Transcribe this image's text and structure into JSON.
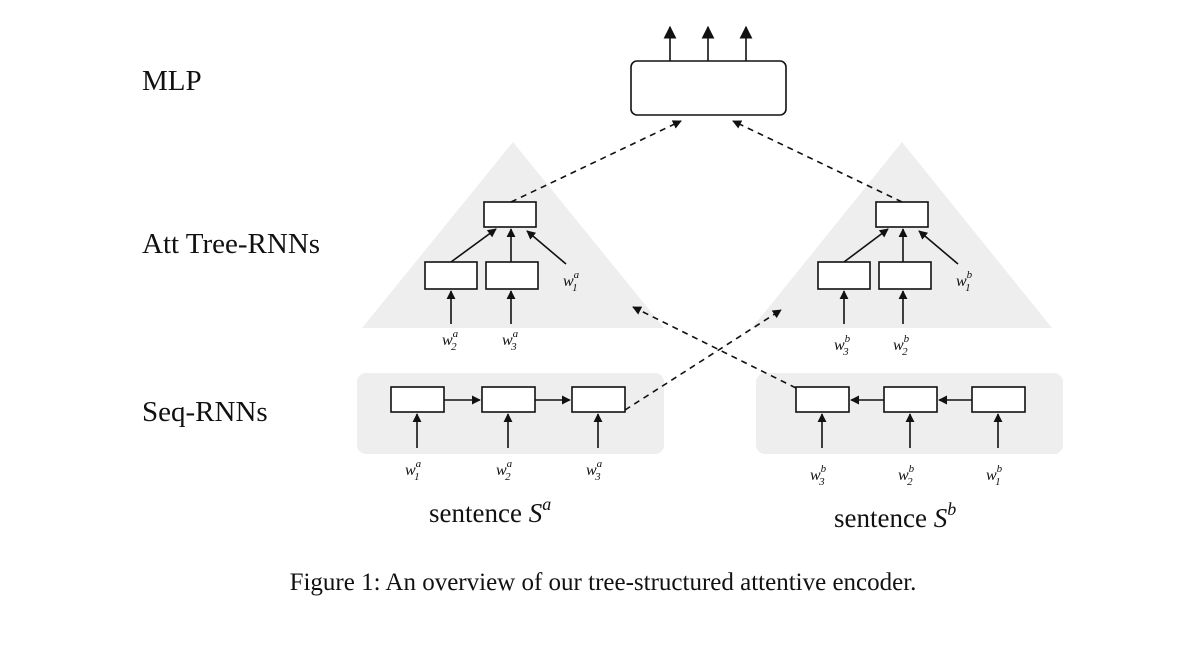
{
  "levels": {
    "mlp": "MLP",
    "tree": "Att Tree-RNNs",
    "seq": "Seq-RNNs"
  },
  "words": {
    "a": [
      "w",
      "w",
      "w"
    ],
    "b": [
      "w",
      "w",
      "w"
    ]
  },
  "subscripts": [
    "1",
    "2",
    "3"
  ],
  "superscripts": {
    "a": "a",
    "b": "b"
  },
  "sentences": {
    "a": {
      "text": "sentence ",
      "symbol": "S",
      "sup": "a"
    },
    "b": {
      "text": "sentence ",
      "symbol": "S",
      "sup": "b"
    }
  },
  "caption": "Figure 1: An overview of our tree-structured attentive encoder."
}
